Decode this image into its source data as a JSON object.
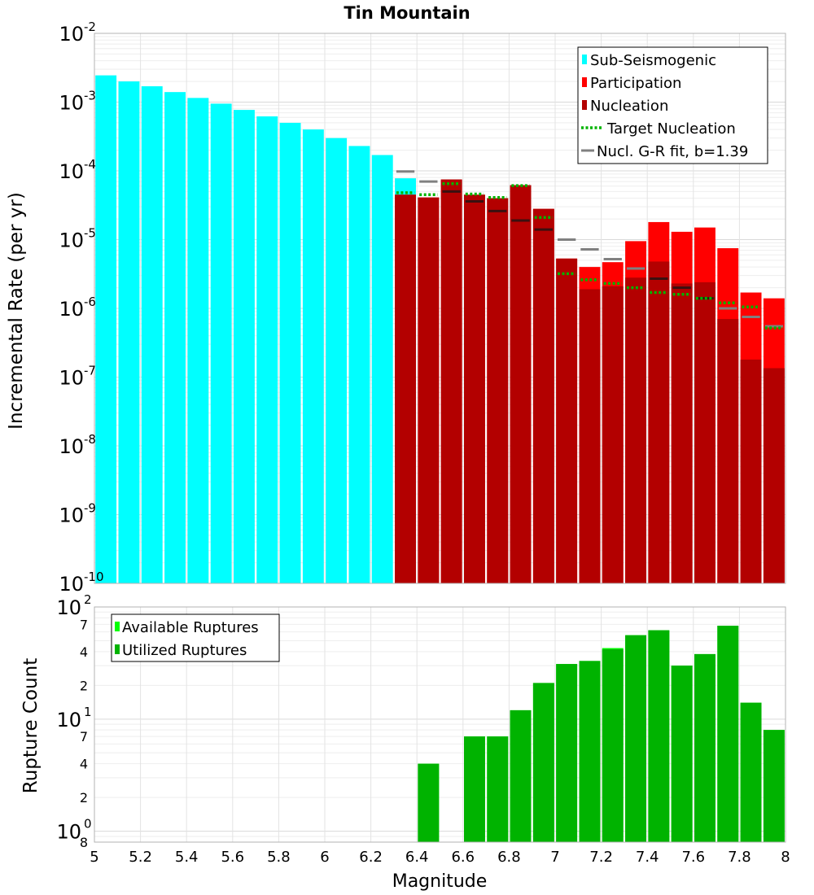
{
  "chart_data": [
    {
      "type": "bar",
      "title": "Tin Mountain",
      "xlabel": "Magnitude",
      "ylabel": "Incremental Rate (per yr)",
      "yscale": "log",
      "xlim": [
        5,
        8
      ],
      "ylim": [
        1e-10,
        0.01
      ],
      "x_ticks": [
        "5",
        "5.2",
        "5.4",
        "5.6",
        "5.8",
        "6",
        "6.2",
        "6.4",
        "6.6",
        "6.8",
        "7",
        "7.2",
        "7.4",
        "7.6",
        "7.8",
        "8"
      ],
      "y_ticks": [
        {
          "base": "10",
          "exp": "-10",
          "value": 1e-10
        },
        {
          "base": "10",
          "exp": "-9",
          "value": 1e-09
        },
        {
          "base": "10",
          "exp": "-8",
          "value": 1e-08
        },
        {
          "base": "10",
          "exp": "-7",
          "value": 1e-07
        },
        {
          "base": "10",
          "exp": "-6",
          "value": 1e-06
        },
        {
          "base": "10",
          "exp": "-5",
          "value": 1e-05
        },
        {
          "base": "10",
          "exp": "-4",
          "value": 0.0001
        },
        {
          "base": "10",
          "exp": "-3",
          "value": 0.001
        },
        {
          "base": "10",
          "exp": "-2",
          "value": 0.01
        }
      ],
      "bin_width": 0.1,
      "legend": [
        {
          "label": "Sub-Seismogenic",
          "color": "#00ffff",
          "kind": "box"
        },
        {
          "label": "Participation",
          "color": "#ff0000",
          "kind": "box"
        },
        {
          "label": "Nucleation",
          "color": "#b30000",
          "kind": "box"
        },
        {
          "label": "Target Nucleation",
          "color": "#00b300",
          "kind": "dotted"
        },
        {
          "label": "Nucl. G-R fit, b=1.39",
          "color": "#808080",
          "kind": "line"
        }
      ],
      "legend_position": "top-right",
      "series": [
        {
          "name": "Sub-Seismogenic",
          "color": "#00ffff",
          "x": [
            5.05,
            5.15,
            5.25,
            5.35,
            5.45,
            5.55,
            5.65,
            5.75,
            5.85,
            5.95,
            6.05,
            6.15,
            6.25,
            6.35
          ],
          "values": [
            0.00245,
            0.002,
            0.0017,
            0.0014,
            0.00115,
            0.00095,
            0.00077,
            0.00062,
            0.0005,
            0.0004,
            0.0003,
            0.00023,
            0.00017,
            7.8e-05
          ]
        },
        {
          "name": "Participation",
          "color": "#ff0000",
          "x": [
            6.35,
            6.45,
            6.55,
            6.65,
            6.75,
            6.85,
            6.95,
            7.05,
            7.15,
            7.25,
            7.35,
            7.45,
            7.55,
            7.65,
            7.75,
            7.85,
            7.95
          ],
          "values": [
            4.5e-05,
            4.1e-05,
            7.5e-05,
            4.5e-05,
            4e-05,
            6.2e-05,
            2.8e-05,
            5.3e-06,
            4e-06,
            4.7e-06,
            9.5e-06,
            1.8e-05,
            1.3e-05,
            1.5e-05,
            7.5e-06,
            1.7e-06,
            1.4e-06
          ]
        },
        {
          "name": "Nucleation",
          "color": "#b30000",
          "x": [
            6.35,
            6.45,
            6.55,
            6.65,
            6.75,
            6.85,
            6.95,
            7.05,
            7.15,
            7.25,
            7.35,
            7.45,
            7.55,
            7.65,
            7.75,
            7.85,
            7.95
          ],
          "values": [
            4.5e-05,
            4.1e-05,
            7.5e-05,
            4.5e-05,
            4e-05,
            6.2e-05,
            2.8e-05,
            5.3e-06,
            1.9e-06,
            2.1e-06,
            2.8e-06,
            4.8e-06,
            2.3e-06,
            2.4e-06,
            7e-07,
            1.8e-07,
            1.35e-07
          ]
        },
        {
          "name": "Target Nucleation",
          "color": "#00b300",
          "x": [
            6.35,
            6.45,
            6.55,
            6.65,
            6.75,
            6.85,
            6.95,
            7.05,
            7.15,
            7.25,
            7.35,
            7.45,
            7.55,
            7.65,
            7.75,
            7.85,
            7.95
          ],
          "values": [
            4.8e-05,
            4.5e-05,
            6.5e-05,
            4.6e-05,
            4.1e-05,
            6.1e-05,
            2.1e-05,
            3.2e-06,
            2.6e-06,
            2.3e-06,
            2e-06,
            1.7e-06,
            1.6e-06,
            1.4e-06,
            1.2e-06,
            1.05e-06,
            5.2e-07
          ]
        },
        {
          "name": "Nucl. G-R fit, b=1.39",
          "color": "#808080",
          "x": [
            6.35,
            6.45,
            6.55,
            6.65,
            6.75,
            6.85,
            6.95,
            7.05,
            7.15,
            7.25,
            7.35,
            7.45,
            7.55,
            7.65,
            7.75,
            7.85,
            7.95
          ],
          "values": [
            9.8e-05,
            7e-05,
            5e-05,
            3.6e-05,
            2.6e-05,
            1.9e-05,
            1.4e-05,
            1e-05,
            7.2e-06,
            5.2e-06,
            3.8e-06,
            2.7e-06,
            2e-06,
            1.4e-06,
            1e-06,
            7.5e-07,
            5.5e-07
          ]
        }
      ]
    },
    {
      "type": "bar",
      "xlabel": "Magnitude",
      "ylabel": "Rupture Count",
      "yscale": "log",
      "xlim": [
        5,
        8
      ],
      "ylim": [
        0.8,
        100
      ],
      "y_ticks": [
        {
          "label": "10",
          "exp": "0",
          "value": 1
        },
        {
          "label": "10",
          "exp": "1",
          "value": 10
        },
        {
          "label": "10",
          "exp": "2",
          "value": 100
        }
      ],
      "y_minor_ticks": [
        {
          "label": "8",
          "value": 0.8
        },
        {
          "label": "2",
          "value": 2
        },
        {
          "label": "4",
          "value": 4
        },
        {
          "label": "7",
          "value": 7
        },
        {
          "label": "2",
          "value": 20
        },
        {
          "label": "4",
          "value": 40
        },
        {
          "label": "7",
          "value": 70
        }
      ],
      "legend": [
        {
          "label": "Available Ruptures",
          "color": "#00ff00",
          "kind": "box"
        },
        {
          "label": "Utilized Ruptures",
          "color": "#00b300",
          "kind": "box"
        }
      ],
      "legend_position": "top-left",
      "series": [
        {
          "name": "Available Ruptures",
          "color": "#00ff00",
          "x": [
            6.45,
            6.65,
            6.75,
            6.85,
            6.95,
            7.05,
            7.15,
            7.25,
            7.35,
            7.45,
            7.55,
            7.65,
            7.75,
            7.85,
            7.95
          ],
          "values": [
            4,
            7,
            7,
            12,
            21,
            31,
            33,
            43,
            56,
            62,
            30,
            38,
            68,
            14,
            8
          ]
        },
        {
          "name": "Utilized Ruptures",
          "color": "#00b300",
          "x": [
            6.45,
            6.65,
            6.75,
            6.85,
            6.95,
            7.05,
            7.15,
            7.25,
            7.35,
            7.45,
            7.55,
            7.65,
            7.75,
            7.85,
            7.95
          ],
          "values": [
            4,
            7,
            7,
            12,
            21,
            31,
            33,
            42,
            56,
            62,
            30,
            38,
            68,
            14,
            8
          ]
        }
      ]
    }
  ]
}
